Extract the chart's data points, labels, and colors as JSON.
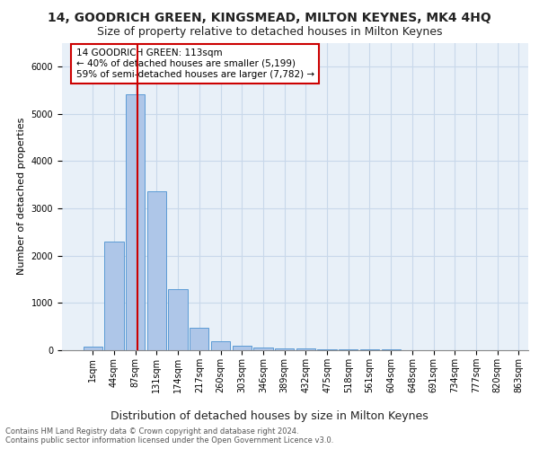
{
  "title": "14, GOODRICH GREEN, KINGSMEAD, MILTON KEYNES, MK4 4HQ",
  "subtitle": "Size of property relative to detached houses in Milton Keynes",
  "xlabel": "Distribution of detached houses by size in Milton Keynes",
  "ylabel": "Number of detached properties",
  "bar_values": [
    75,
    2300,
    5400,
    3350,
    1300,
    480,
    190,
    90,
    55,
    45,
    35,
    25,
    20,
    15,
    10,
    8,
    6,
    5,
    4,
    3
  ],
  "bar_labels": [
    "1sqm",
    "44sqm",
    "87sqm",
    "131sqm",
    "174sqm",
    "217sqm",
    "260sqm",
    "303sqm",
    "346sqm",
    "389sqm",
    "432sqm",
    "475sqm",
    "518sqm",
    "561sqm",
    "604sqm",
    "648sqm",
    "691sqm",
    "734sqm",
    "777sqm",
    "820sqm",
    "863sqm"
  ],
  "bar_color": "#aec6e8",
  "bar_edge_color": "#5b9bd5",
  "grid_color": "#c8d8ea",
  "background_color": "#e8f0f8",
  "property_line_color": "#cc0000",
  "annotation_text": "14 GOODRICH GREEN: 113sqm\n← 40% of detached houses are smaller (5,199)\n59% of semi-detached houses are larger (7,782) →",
  "annotation_box_facecolor": "#ffffff",
  "annotation_box_edgecolor": "#cc0000",
  "footer_text": "Contains HM Land Registry data © Crown copyright and database right 2024.\nContains public sector information licensed under the Open Government Licence v3.0.",
  "ylim": [
    0,
    6500
  ],
  "title_fontsize": 10,
  "subtitle_fontsize": 9,
  "tick_fontsize": 7,
  "ylabel_fontsize": 8,
  "xlabel_fontsize": 9,
  "footer_fontsize": 6
}
